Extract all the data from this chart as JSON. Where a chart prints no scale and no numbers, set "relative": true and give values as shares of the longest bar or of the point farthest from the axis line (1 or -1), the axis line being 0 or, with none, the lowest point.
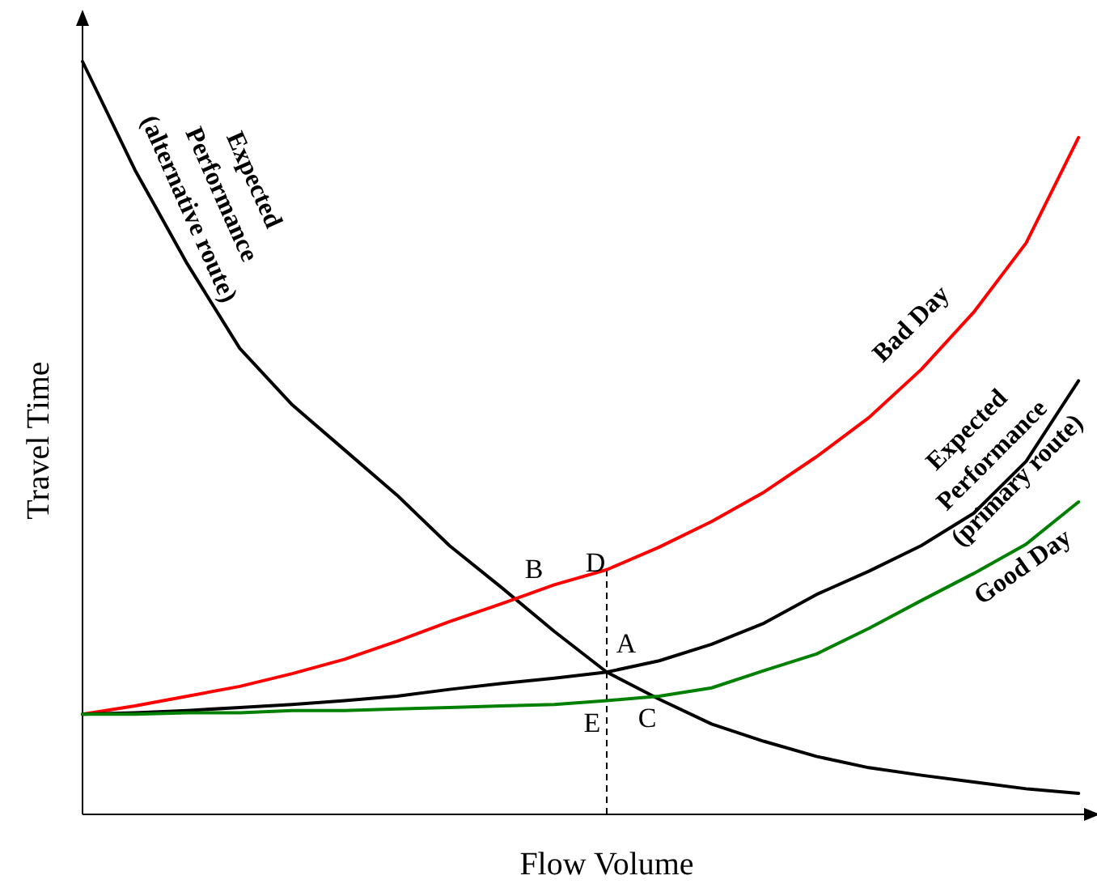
{
  "chart_data": {
    "type": "line",
    "xlabel": "Flow Volume",
    "ylabel": "Travel Time",
    "relative": true,
    "marker": "none",
    "line_style": "solid",
    "categories": [
      null,
      null,
      null,
      null,
      null,
      null,
      null,
      null,
      null,
      null,
      null,
      null,
      null,
      null,
      null,
      null,
      null,
      null,
      null,
      null
    ],
    "series": [
      {
        "name": "Expected Performance (alternative route)",
        "color": "#000000",
        "values": [
          1,
          0.856,
          0.731,
          0.619,
          0.544,
          0.484,
          0.424,
          0.357,
          0.301,
          0.243,
          0.189,
          0.153,
          0.12,
          0.097,
          0.077,
          0.062,
          0.052,
          0.043,
          0.034,
          0.028
        ]
      },
      {
        "name": "Bad Day",
        "color": "#ff0000",
        "values": [
          0.133,
          0.144,
          0.157,
          0.17,
          0.187,
          0.206,
          0.23,
          0.256,
          0.28,
          0.305,
          0.325,
          0.355,
          0.389,
          0.428,
          0.475,
          0.527,
          0.591,
          0.667,
          0.759,
          0.899
        ]
      },
      {
        "name": "Expected Performance (primary route)",
        "color": "#000000",
        "values": [
          0.133,
          0.135,
          0.138,
          0.142,
          0.146,
          0.151,
          0.157,
          0.166,
          0.174,
          0.181,
          0.189,
          0.204,
          0.226,
          0.254,
          0.292,
          0.323,
          0.357,
          0.4,
          0.469,
          0.576
        ]
      },
      {
        "name": "Good Day",
        "color": "#008000",
        "values": [
          0.133,
          0.133,
          0.135,
          0.135,
          0.138,
          0.138,
          0.14,
          0.142,
          0.144,
          0.146,
          0.151,
          0.157,
          0.168,
          0.191,
          0.213,
          0.247,
          0.284,
          0.32,
          0.359,
          0.415
        ]
      }
    ],
    "annotations": [
      "A",
      "B",
      "C",
      "D",
      "E"
    ]
  }
}
